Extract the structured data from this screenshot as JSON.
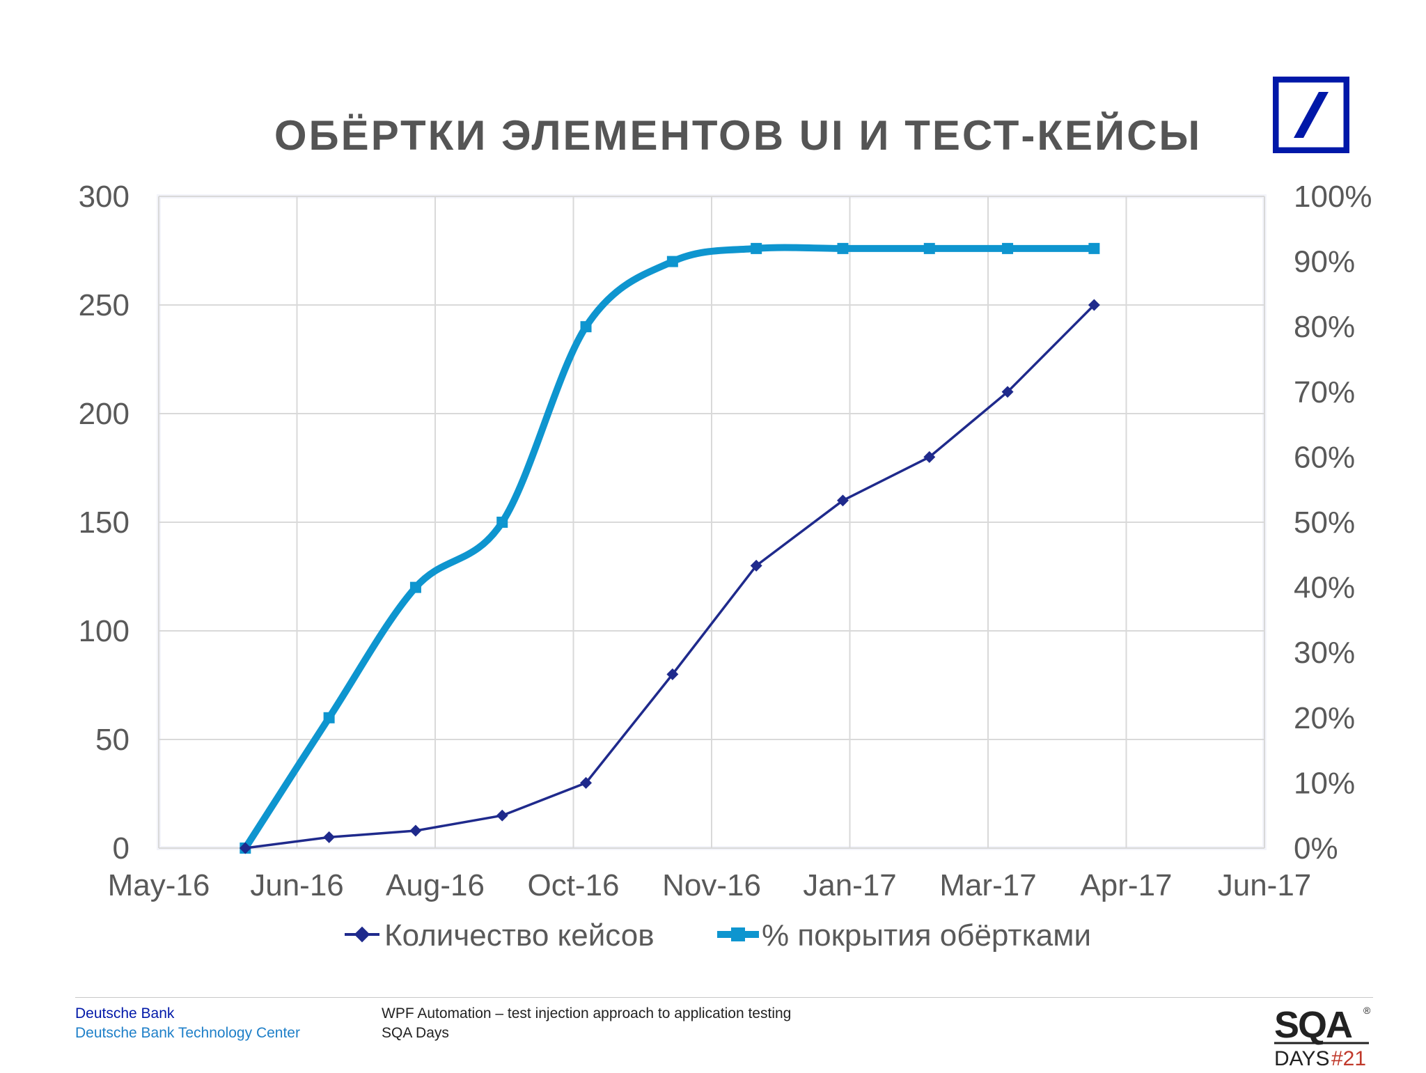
{
  "slide": {
    "title": "ОБЁРТКИ ЭЛЕМЕНТОВ UI И ТЕСТ-КЕЙСЫ"
  },
  "footer": {
    "org_line1": "Deutsche Bank",
    "org_line2": "Deutsche Bank Technology Center",
    "talk_line1": "WPF Automation – test injection approach to application testing",
    "talk_line2": "SQA Days"
  },
  "logos": {
    "deutsche_bank_icon": "deutsche-bank-logo-icon",
    "sqa_days": {
      "top": "SQA",
      "bottom": "DAYS",
      "number": "#21",
      "mark": "®"
    }
  },
  "colors": {
    "series_cases": "#1f2a8c",
    "series_coverage": "#0e95cf",
    "grid": "#d9d9d9",
    "brand_blue": "#0018a8"
  },
  "chart_data": {
    "type": "line",
    "title": "ОБЁРТКИ ЭЛЕМЕНТОВ UI И ТЕСТ-КЕЙСЫ",
    "x_tick_labels": [
      "May-16",
      "Jun-16",
      "Aug-16",
      "Oct-16",
      "Nov-16",
      "Jan-17",
      "Mar-17",
      "Apr-17",
      "Jun-17"
    ],
    "x_range": [
      "2016-05-01",
      "2017-06-01"
    ],
    "y_left": {
      "ticks": [
        0,
        50,
        100,
        150,
        200,
        250,
        300
      ],
      "range": [
        0,
        300
      ]
    },
    "y_right": {
      "ticks": [
        "0%",
        "10%",
        "20%",
        "30%",
        "40%",
        "50%",
        "60%",
        "70%",
        "80%",
        "90%",
        "100%"
      ],
      "range": [
        0,
        100
      ]
    },
    "grid": true,
    "legend_position": "bottom",
    "series": [
      {
        "name": "Количество кейсов",
        "axis": "left",
        "marker": "diamond",
        "smooth": false,
        "points": [
          {
            "x": "2016-06-01",
            "y": 0
          },
          {
            "x": "2016-07-01",
            "y": 5
          },
          {
            "x": "2016-08-01",
            "y": 8
          },
          {
            "x": "2016-09-01",
            "y": 15
          },
          {
            "x": "2016-10-01",
            "y": 30
          },
          {
            "x": "2016-11-01",
            "y": 80
          },
          {
            "x": "2016-12-01",
            "y": 130
          },
          {
            "x": "2017-01-01",
            "y": 160
          },
          {
            "x": "2017-02-01",
            "y": 180
          },
          {
            "x": "2017-03-01",
            "y": 210
          },
          {
            "x": "2017-04-01",
            "y": 250
          }
        ]
      },
      {
        "name": "% покрытия обёртками",
        "axis": "right",
        "marker": "square",
        "smooth": true,
        "points": [
          {
            "x": "2016-06-01",
            "y": 0
          },
          {
            "x": "2016-07-01",
            "y": 20
          },
          {
            "x": "2016-08-01",
            "y": 40
          },
          {
            "x": "2016-09-01",
            "y": 50
          },
          {
            "x": "2016-10-01",
            "y": 80
          },
          {
            "x": "2016-11-01",
            "y": 90
          },
          {
            "x": "2016-12-01",
            "y": 92
          },
          {
            "x": "2017-01-01",
            "y": 92
          },
          {
            "x": "2017-02-01",
            "y": 92
          },
          {
            "x": "2017-03-01",
            "y": 92
          },
          {
            "x": "2017-04-01",
            "y": 92
          }
        ]
      }
    ]
  }
}
